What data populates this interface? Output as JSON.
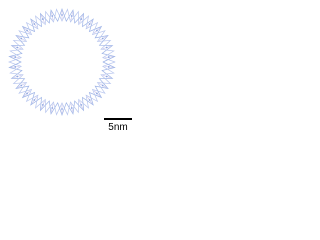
{
  "scale_bar": {
    "label": "5nm"
  }
}
